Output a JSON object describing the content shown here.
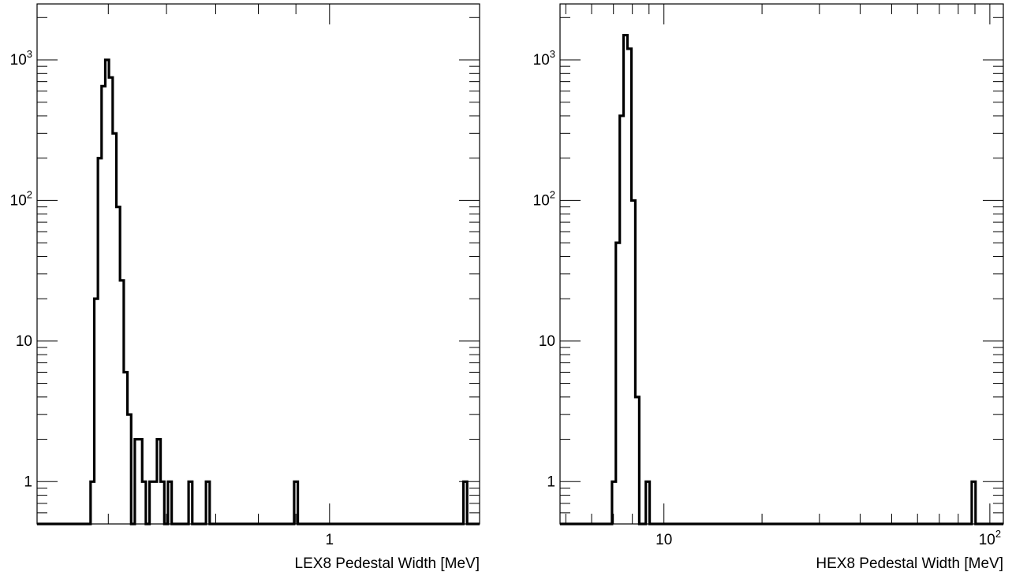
{
  "chart_data": [
    {
      "type": "histogram",
      "xlabel": "LEX8 Pedestal Width [MeV]",
      "ylabel": "",
      "xscale": "log",
      "yscale": "log",
      "xlim": [
        0.4,
        1.6
      ],
      "ylim": [
        0.5,
        2500
      ],
      "x_tick_labels": [
        {
          "value": 1,
          "label": "1"
        }
      ],
      "y_tick_labels": [
        {
          "value": 1,
          "base": "1",
          "exp": ""
        },
        {
          "value": 10,
          "base": "10",
          "exp": ""
        },
        {
          "value": 100,
          "base": "10",
          "exp": "2"
        },
        {
          "value": 1000,
          "base": "10",
          "exp": "3"
        }
      ],
      "line_color": "#000000",
      "bins": [
        {
          "lo": 0.4,
          "hi": 0.473,
          "count": 0
        },
        {
          "lo": 0.473,
          "hi": 0.4785,
          "count": 1
        },
        {
          "lo": 0.4785,
          "hi": 0.484,
          "count": 20
        },
        {
          "lo": 0.484,
          "hi": 0.4896,
          "count": 200
        },
        {
          "lo": 0.4896,
          "hi": 0.4953,
          "count": 650
        },
        {
          "lo": 0.4953,
          "hi": 0.501,
          "count": 1000
        },
        {
          "lo": 0.501,
          "hi": 0.5069,
          "count": 750
        },
        {
          "lo": 0.5069,
          "hi": 0.5128,
          "count": 300
        },
        {
          "lo": 0.5128,
          "hi": 0.5187,
          "count": 90
        },
        {
          "lo": 0.5187,
          "hi": 0.5248,
          "count": 27
        },
        {
          "lo": 0.5248,
          "hi": 0.5309,
          "count": 6
        },
        {
          "lo": 0.5309,
          "hi": 0.5371,
          "count": 3
        },
        {
          "lo": 0.5371,
          "hi": 0.5433,
          "count": 0
        },
        {
          "lo": 0.5433,
          "hi": 0.5496,
          "count": 2
        },
        {
          "lo": 0.5496,
          "hi": 0.556,
          "count": 2
        },
        {
          "lo": 0.556,
          "hi": 0.5624,
          "count": 1
        },
        {
          "lo": 0.5624,
          "hi": 0.569,
          "count": 0
        },
        {
          "lo": 0.569,
          "hi": 0.5756,
          "count": 1
        },
        {
          "lo": 0.5756,
          "hi": 0.5823,
          "count": 1
        },
        {
          "lo": 0.5823,
          "hi": 0.589,
          "count": 2
        },
        {
          "lo": 0.589,
          "hi": 0.5959,
          "count": 1
        },
        {
          "lo": 0.5959,
          "hi": 0.6028,
          "count": 0
        },
        {
          "lo": 0.6028,
          "hi": 0.6098,
          "count": 1
        },
        {
          "lo": 0.6098,
          "hi": 0.643,
          "count": 0
        },
        {
          "lo": 0.643,
          "hi": 0.6505,
          "count": 1
        },
        {
          "lo": 0.6505,
          "hi": 0.679,
          "count": 0
        },
        {
          "lo": 0.679,
          "hi": 0.6869,
          "count": 1
        },
        {
          "lo": 0.6869,
          "hi": 0.895,
          "count": 0
        },
        {
          "lo": 0.895,
          "hi": 0.9054,
          "count": 1
        },
        {
          "lo": 0.9054,
          "hi": 1.521,
          "count": 0
        },
        {
          "lo": 1.521,
          "hi": 1.5387,
          "count": 1
        },
        {
          "lo": 1.5387,
          "hi": 1.6,
          "count": 0
        }
      ]
    },
    {
      "type": "histogram",
      "xlabel": "HEX8 Pedestal Width [MeV]",
      "ylabel": "",
      "xscale": "log",
      "yscale": "log",
      "xlim": [
        4.8,
        110
      ],
      "ylim": [
        0.5,
        2500
      ],
      "x_tick_labels": [
        {
          "value": 10,
          "base": "10",
          "exp": ""
        },
        {
          "value": 100,
          "base": "10",
          "exp": "2"
        }
      ],
      "y_tick_labels": [
        {
          "value": 1,
          "base": "1",
          "exp": ""
        },
        {
          "value": 10,
          "base": "10",
          "exp": ""
        },
        {
          "value": 100,
          "base": "10",
          "exp": "2"
        },
        {
          "value": 1000,
          "base": "10",
          "exp": "3"
        }
      ],
      "line_color": "#000000",
      "bins": [
        {
          "lo": 4.8,
          "hi": 6.93,
          "count": 0
        },
        {
          "lo": 6.93,
          "hi": 7.12,
          "count": 1
        },
        {
          "lo": 7.12,
          "hi": 7.32,
          "count": 50
        },
        {
          "lo": 7.32,
          "hi": 7.52,
          "count": 400
        },
        {
          "lo": 7.52,
          "hi": 7.73,
          "count": 1500
        },
        {
          "lo": 7.73,
          "hi": 7.95,
          "count": 1200
        },
        {
          "lo": 7.95,
          "hi": 8.17,
          "count": 100
        },
        {
          "lo": 8.17,
          "hi": 8.4,
          "count": 4
        },
        {
          "lo": 8.4,
          "hi": 8.8,
          "count": 0
        },
        {
          "lo": 8.8,
          "hi": 9.04,
          "count": 1
        },
        {
          "lo": 9.04,
          "hi": 88.0,
          "count": 0
        },
        {
          "lo": 88.0,
          "hi": 90.4,
          "count": 1
        },
        {
          "lo": 90.4,
          "hi": 110,
          "count": 0
        }
      ]
    }
  ]
}
